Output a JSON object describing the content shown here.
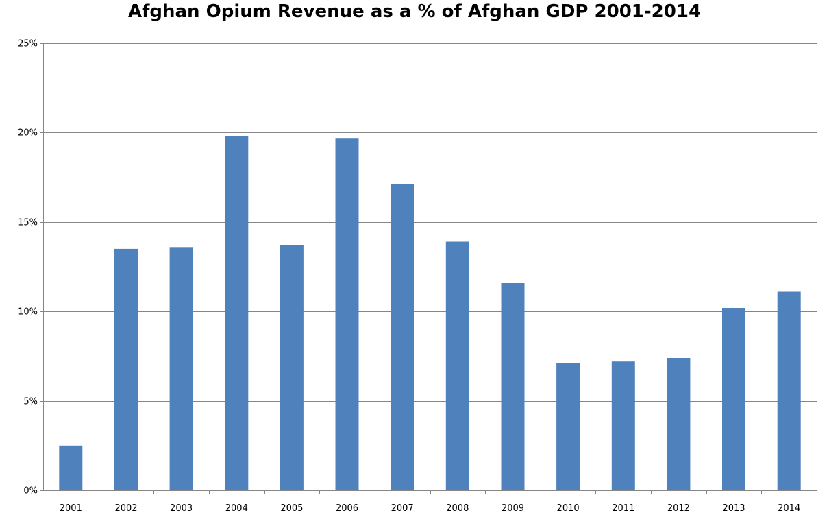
{
  "chart_data": {
    "type": "bar",
    "title": "Afghan Opium Revenue as a % of Afghan GDP 2001-2014",
    "xlabel": "",
    "ylabel": "",
    "categories": [
      "2001",
      "2002",
      "2003",
      "2004",
      "2005",
      "2006",
      "2007",
      "2008",
      "2009",
      "2010",
      "2011",
      "2012",
      "2013",
      "2014"
    ],
    "values": [
      2.5,
      13.5,
      13.6,
      19.8,
      13.7,
      19.7,
      17.1,
      13.9,
      11.6,
      7.1,
      7.2,
      7.4,
      10.2,
      11.1
    ],
    "ylim": [
      0,
      25
    ],
    "yticks": [
      0,
      5,
      10,
      15,
      20,
      25
    ],
    "ytick_labels": [
      "0%",
      "5%",
      "10%",
      "15%",
      "20%",
      "25%"
    ],
    "grid": true,
    "legend": "none",
    "colors": {
      "bar": "#4f81bd",
      "grid": "#868686",
      "axis": "#868686"
    }
  }
}
